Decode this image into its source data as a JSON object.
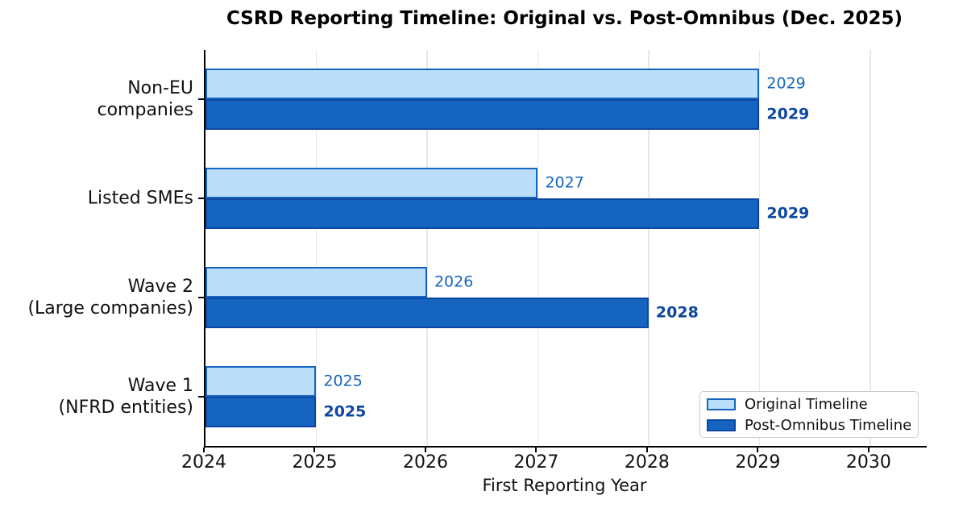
{
  "title": "CSRD Reporting Timeline: Original vs. Post-Omnibus (Dec. 2025)",
  "colors": {
    "original_fill": "#BBDEFB",
    "original_edge": "#1565C0",
    "post_omnibus_fill": "#1565C0",
    "post_omnibus_edge": "#0D47A1",
    "original_value_label": "#1565C0",
    "post_value_label": "#0D47A1",
    "grid": "#E7E7E7",
    "axis": "#000000"
  },
  "chart_data": {
    "type": "bar",
    "orientation": "horizontal",
    "title": "CSRD Reporting Timeline: Original vs. Post-Omnibus (Dec. 2025)",
    "xlabel": "First Reporting Year",
    "ylabel": "",
    "categories": [
      "Non-EU\ncompanies",
      "Listed SMEs",
      "Wave 2\n(Large companies)",
      "Wave 1\n(NFRD entities)"
    ],
    "series": [
      {
        "name": "Original Timeline",
        "values": [
          2029,
          2027,
          2026,
          2025
        ]
      },
      {
        "name": "Post-Omnibus Timeline",
        "values": [
          2029,
          2029,
          2028,
          2025
        ]
      }
    ],
    "bar_base": 2024,
    "xlim": [
      2024,
      2030.51
    ],
    "x_ticks": [
      2024,
      2025,
      2026,
      2027,
      2028,
      2029,
      2030
    ],
    "grid": "vertical",
    "legend_position": "lower right",
    "value_labels": true
  }
}
